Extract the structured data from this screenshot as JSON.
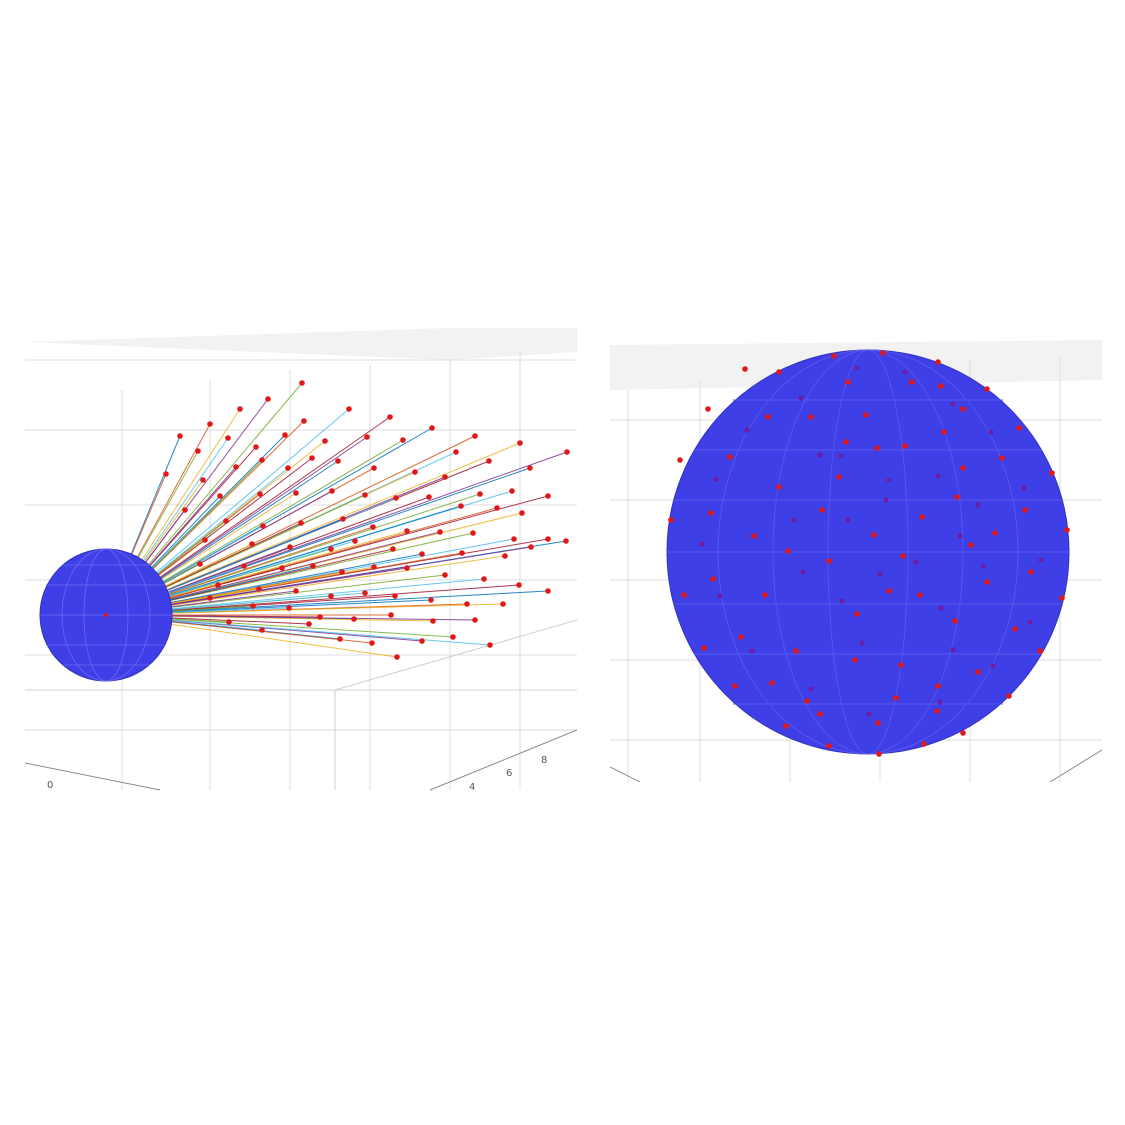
{
  "chart_data": [
    {
      "type": "scatter",
      "title": "",
      "xlabel": "",
      "ylabel": "",
      "zlabel": "",
      "grid": true,
      "sphere_color": "#3f3fe8",
      "point_color": "#e01818",
      "line_palette": [
        "#0072bd",
        "#d95319",
        "#edb120",
        "#7e2f8e",
        "#77ac30",
        "#4dbeee",
        "#a2142f"
      ],
      "x_tick_labels": [
        "0"
      ],
      "y_tick_labels": [
        "4",
        "6",
        "8"
      ],
      "points": [
        [
          180,
          436
        ],
        [
          210,
          424
        ],
        [
          240,
          409
        ],
        [
          268,
          399
        ],
        [
          302,
          383
        ],
        [
          349,
          409
        ],
        [
          390,
          417
        ],
        [
          432,
          428
        ],
        [
          475,
          436
        ],
        [
          520,
          443
        ],
        [
          567,
          452
        ],
        [
          198,
          451
        ],
        [
          228,
          438
        ],
        [
          256,
          447
        ],
        [
          285,
          435
        ],
        [
          304,
          421
        ],
        [
          325,
          441
        ],
        [
          367,
          437
        ],
        [
          403,
          440
        ],
        [
          456,
          452
        ],
        [
          489,
          461
        ],
        [
          530,
          468
        ],
        [
          166,
          474
        ],
        [
          203,
          480
        ],
        [
          236,
          467
        ],
        [
          262,
          460
        ],
        [
          288,
          468
        ],
        [
          312,
          458
        ],
        [
          338,
          461
        ],
        [
          374,
          468
        ],
        [
          415,
          472
        ],
        [
          445,
          477
        ],
        [
          480,
          494
        ],
        [
          512,
          491
        ],
        [
          548,
          496
        ],
        [
          220,
          496
        ],
        [
          260,
          494
        ],
        [
          296,
          493
        ],
        [
          332,
          491
        ],
        [
          365,
          495
        ],
        [
          396,
          498
        ],
        [
          429,
          497
        ],
        [
          461,
          506
        ],
        [
          497,
          508
        ],
        [
          522,
          513
        ],
        [
          185,
          510
        ],
        [
          226,
          521
        ],
        [
          263,
          526
        ],
        [
          301,
          523
        ],
        [
          343,
          519
        ],
        [
          373,
          527
        ],
        [
          407,
          531
        ],
        [
          440,
          532
        ],
        [
          473,
          533
        ],
        [
          514,
          539
        ],
        [
          548,
          539
        ],
        [
          566,
          541
        ],
        [
          205,
          540
        ],
        [
          252,
          544
        ],
        [
          290,
          547
        ],
        [
          331,
          549
        ],
        [
          355,
          541
        ],
        [
          393,
          549
        ],
        [
          422,
          554
        ],
        [
          462,
          553
        ],
        [
          505,
          556
        ],
        [
          531,
          547
        ],
        [
          200,
          564
        ],
        [
          244,
          566
        ],
        [
          282,
          568
        ],
        [
          313,
          566
        ],
        [
          342,
          572
        ],
        [
          374,
          567
        ],
        [
          407,
          568
        ],
        [
          445,
          575
        ],
        [
          484,
          579
        ],
        [
          519,
          585
        ],
        [
          548,
          591
        ],
        [
          218,
          585
        ],
        [
          259,
          589
        ],
        [
          296,
          591
        ],
        [
          331,
          596
        ],
        [
          365,
          593
        ],
        [
          395,
          596
        ],
        [
          431,
          600
        ],
        [
          467,
          604
        ],
        [
          503,
          604
        ],
        [
          210,
          598
        ],
        [
          253,
          606
        ],
        [
          289,
          608
        ],
        [
          320,
          617
        ],
        [
          354,
          619
        ],
        [
          391,
          615
        ],
        [
          433,
          621
        ],
        [
          475,
          620
        ],
        [
          229,
          622
        ],
        [
          262,
          630
        ],
        [
          309,
          624
        ],
        [
          340,
          639
        ],
        [
          372,
          643
        ],
        [
          397,
          657
        ],
        [
          422,
          641
        ],
        [
          453,
          637
        ],
        [
          490,
          645
        ]
      ]
    },
    {
      "type": "scatter",
      "title": "",
      "xlabel": "",
      "ylabel": "",
      "zlabel": "",
      "grid": true,
      "sphere_color": "#3f3fe8",
      "point_color": "#e01818",
      "x_tick_labels": [],
      "y_tick_labels": [],
      "points": [
        [
          834,
          356
        ],
        [
          883,
          353
        ],
        [
          938,
          362
        ],
        [
          987,
          389
        ],
        [
          1019,
          428
        ],
        [
          1052,
          473
        ],
        [
          1067,
          530
        ],
        [
          1062,
          598
        ],
        [
          1040,
          651
        ],
        [
          1009,
          696
        ],
        [
          963,
          733
        ],
        [
          924,
          744
        ],
        [
          879,
          754
        ],
        [
          829,
          746
        ],
        [
          786,
          726
        ],
        [
          735,
          686
        ],
        [
          704,
          648
        ],
        [
          684,
          595
        ],
        [
          671,
          520
        ],
        [
          680,
          460
        ],
        [
          708,
          409
        ],
        [
          745,
          369
        ],
        [
          779,
          372
        ],
        [
          848,
          382
        ],
        [
          912,
          382
        ],
        [
          963,
          409
        ],
        [
          1002,
          458
        ],
        [
          1025,
          510
        ],
        [
          1031,
          572
        ],
        [
          1015,
          629
        ],
        [
          978,
          672
        ],
        [
          937,
          711
        ],
        [
          878,
          723
        ],
        [
          820,
          714
        ],
        [
          772,
          683
        ],
        [
          741,
          637
        ],
        [
          713,
          579
        ],
        [
          711,
          513
        ],
        [
          730,
          457
        ],
        [
          768,
          417
        ],
        [
          811,
          417
        ],
        [
          866,
          415
        ],
        [
          944,
          432
        ],
        [
          957,
          497
        ],
        [
          971,
          545
        ],
        [
          955,
          621
        ],
        [
          901,
          665
        ],
        [
          855,
          660
        ],
        [
          796,
          651
        ],
        [
          765,
          595
        ],
        [
          754,
          536
        ],
        [
          779,
          487
        ],
        [
          839,
          477
        ],
        [
          877,
          448
        ],
        [
          905,
          446
        ],
        [
          922,
          517
        ],
        [
          903,
          556
        ],
        [
          920,
          595
        ],
        [
          857,
          614
        ],
        [
          829,
          561
        ],
        [
          822,
          510
        ],
        [
          874,
          535
        ],
        [
          963,
          468
        ],
        [
          889,
          591
        ],
        [
          788,
          551
        ],
        [
          995,
          533
        ],
        [
          987,
          582
        ],
        [
          807,
          701
        ],
        [
          938,
          686
        ],
        [
          896,
          698
        ],
        [
          846,
          442
        ],
        [
          941,
          386
        ]
      ],
      "points_back": [
        [
          857,
          368
        ],
        [
          905,
          372
        ],
        [
          953,
          404
        ],
        [
          991,
          432
        ],
        [
          1024,
          488
        ],
        [
          1041,
          560
        ],
        [
          1030,
          622
        ],
        [
          993,
          666
        ],
        [
          940,
          702
        ],
        [
          869,
          714
        ],
        [
          811,
          689
        ],
        [
          752,
          651
        ],
        [
          720,
          596
        ],
        [
          702,
          544
        ],
        [
          716,
          479
        ],
        [
          747,
          430
        ],
        [
          801,
          398
        ],
        [
          841,
          456
        ],
        [
          889,
          480
        ],
        [
          938,
          476
        ],
        [
          978,
          505
        ],
        [
          983,
          566
        ],
        [
          941,
          608
        ],
        [
          880,
          574
        ],
        [
          842,
          601
        ],
        [
          803,
          572
        ],
        [
          794,
          520
        ],
        [
          848,
          520
        ],
        [
          862,
          643
        ],
        [
          953,
          650
        ],
        [
          916,
          562
        ],
        [
          886,
          500
        ],
        [
          820,
          455
        ],
        [
          960,
          536
        ]
      ]
    }
  ]
}
